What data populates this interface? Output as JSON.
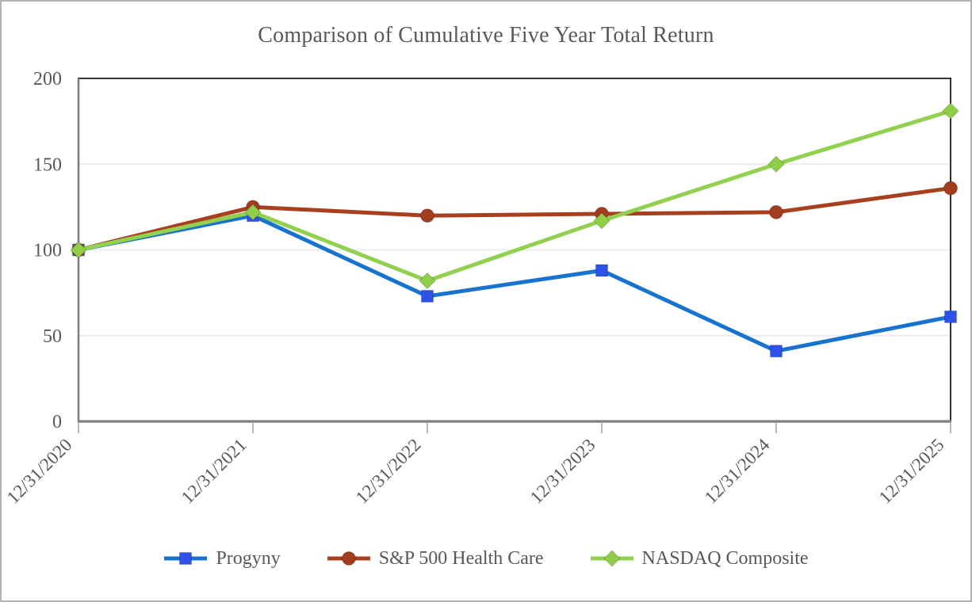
{
  "window": {
    "background": "#ffffff",
    "border_color": "#b3b3b3"
  },
  "chart_data": {
    "type": "line",
    "title": "Comparison of Cumulative Five Year Total Return",
    "title_color": "#595959",
    "axis_label_color": "#595959",
    "categories": [
      "12/31/2020",
      "12/31/2021",
      "12/31/2022",
      "12/31/2023",
      "12/31/2024",
      "12/31/2025"
    ],
    "ylim": [
      0,
      200
    ],
    "yticks": [
      0,
      50,
      100,
      150,
      200
    ],
    "grid": "horizontal",
    "gridline_color": "#ececec",
    "frame_color_top_right": "#1a1a1a",
    "axis_line_color": "#7f7f7f",
    "tick_mark_color": "#a6a6a6",
    "legend_position": "bottom",
    "series": [
      {
        "name": "Progyny",
        "marker": "square",
        "line_color": "#1873CE",
        "marker_color": "#2E52E8",
        "values": [
          100,
          120,
          73,
          88,
          41,
          61
        ]
      },
      {
        "name": "S&P 500 Health Care",
        "marker": "circle",
        "line_color": "#A84020",
        "marker_color": "#A23C1E",
        "values": [
          100,
          125,
          120,
          121,
          122,
          136
        ]
      },
      {
        "name": "NASDAQ Composite",
        "marker": "diamond",
        "line_color": "#92D050",
        "marker_color": "#8FCE46",
        "values": [
          100,
          122,
          82,
          117,
          150,
          181
        ]
      }
    ]
  }
}
